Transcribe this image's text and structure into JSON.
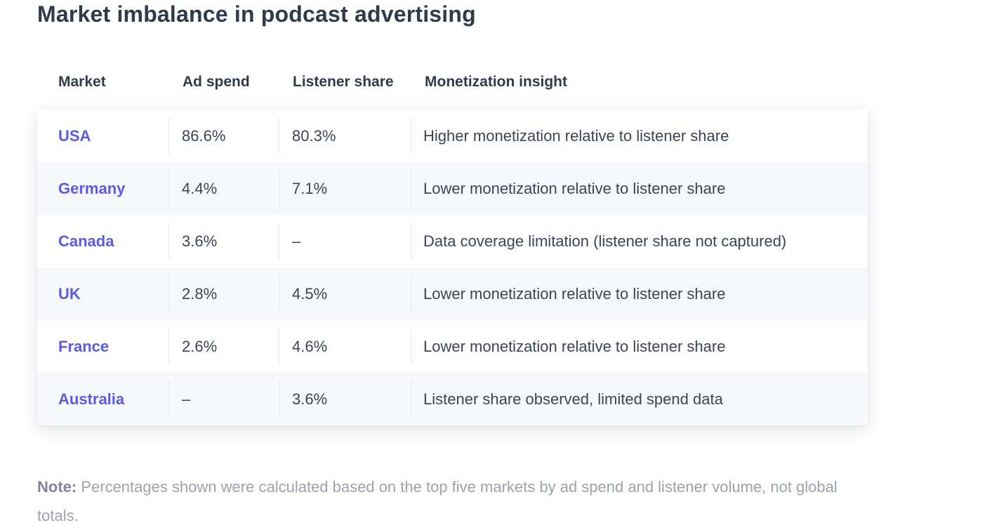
{
  "title": "Market imbalance in podcast advertising",
  "table": {
    "headers": {
      "market": "Market",
      "ad_spend": "Ad spend",
      "listener_share": "Listener share",
      "insight": "Monetization insight"
    },
    "rows": [
      {
        "market": "USA",
        "ad_spend": "86.6%",
        "listener_share": "80.3%",
        "insight": "Higher monetization relative to listener share"
      },
      {
        "market": "Germany",
        "ad_spend": "4.4%",
        "listener_share": "7.1%",
        "insight": "Lower monetization relative to listener share"
      },
      {
        "market": "Canada",
        "ad_spend": "3.6%",
        "listener_share": "–",
        "insight": "Data coverage limitation (listener share not captured)"
      },
      {
        "market": "UK",
        "ad_spend": "2.8%",
        "listener_share": "4.5%",
        "insight": "Lower monetization relative to listener share"
      },
      {
        "market": "France",
        "ad_spend": "2.6%",
        "listener_share": "4.6%",
        "insight": "Lower monetization relative to listener share"
      },
      {
        "market": "Australia",
        "ad_spend": "–",
        "listener_share": "3.6%",
        "insight": "Listener share observed, limited spend data"
      }
    ]
  },
  "note": {
    "label": "Note:",
    "text": " Percentages shown were calculated based on the top five markets by ad spend and listener volume, not global totals."
  },
  "colors": {
    "accent": "#5b5ce2",
    "text": "#2f3a4a",
    "muted": "#9aa3b0",
    "row_alt": "#f6f8fc"
  }
}
